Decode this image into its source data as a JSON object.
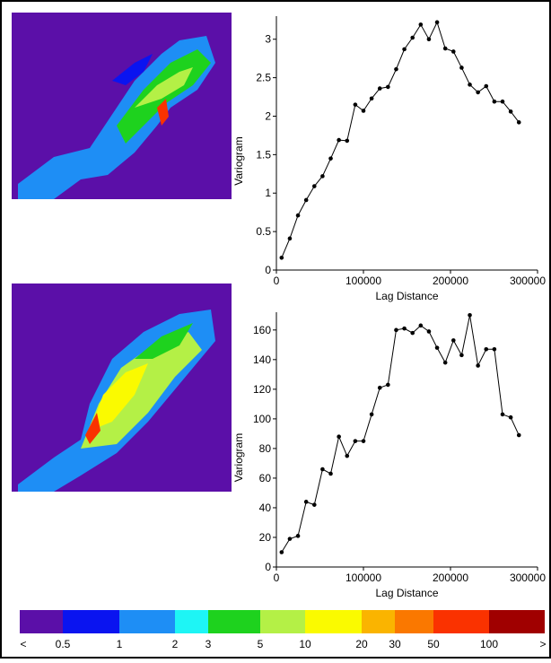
{
  "chart_data": [
    {
      "type": "line",
      "xlabel": "Lag Distance",
      "ylabel": "Variogram",
      "x": [
        6000,
        15400,
        24800,
        34200,
        43600,
        53000,
        62400,
        71800,
        81200,
        90600,
        100000,
        109400,
        118800,
        128200,
        137600,
        147000,
        156400,
        165800,
        175200,
        184600,
        194000,
        203400,
        212800,
        222200,
        231600,
        241000,
        250400,
        259800,
        269200,
        278600
      ],
      "series": [
        {
          "color": "#000000",
          "values": [
            0.16,
            0.41,
            0.71,
            0.91,
            1.09,
            1.22,
            1.45,
            1.69,
            1.68,
            2.15,
            2.07,
            2.23,
            2.36,
            2.38,
            2.61,
            2.87,
            3.02,
            3.19,
            3.0,
            3.22,
            2.88,
            2.84,
            2.63,
            2.41,
            2.31,
            2.39,
            2.19,
            2.19,
            2.06,
            1.92
          ]
        }
      ],
      "xlim": [
        0,
        300000
      ],
      "xticks": [
        0,
        100000,
        200000,
        300000
      ],
      "ylim": [
        0,
        3.3
      ],
      "yticks": [
        0,
        0.5,
        1,
        1.5,
        2,
        2.5,
        3
      ]
    },
    {
      "type": "line",
      "xlabel": "Lag Distance",
      "ylabel": "Variogram",
      "x": [
        6000,
        15400,
        24800,
        34200,
        43600,
        53000,
        62400,
        71800,
        81200,
        90600,
        100000,
        109400,
        118800,
        128200,
        137600,
        147000,
        156400,
        165800,
        175200,
        184600,
        194000,
        203400,
        212800,
        222200,
        231600,
        241000,
        250400,
        259800,
        269200,
        278600
      ],
      "series": [
        {
          "color": "#000000",
          "values": [
            10,
            19,
            21,
            44,
            42,
            66,
            63,
            88,
            75,
            85,
            85,
            103,
            121,
            123,
            160,
            161,
            158,
            163,
            159,
            148,
            138,
            153,
            143,
            170,
            136,
            147,
            147,
            103,
            101,
            89
          ]
        }
      ],
      "xlim": [
        0,
        300000
      ],
      "xticks": [
        0,
        100000,
        200000,
        300000
      ],
      "ylim": [
        0,
        172
      ],
      "yticks": [
        0,
        20,
        40,
        60,
        80,
        100,
        120,
        140,
        160
      ]
    }
  ],
  "colorbar": {
    "colors": [
      "#5b0fa8",
      "#0a14f0",
      "#1e8ef5",
      "#1ef5f5",
      "#1ed21e",
      "#b4f046",
      "#fafa00",
      "#fab400",
      "#fa7800",
      "#fa3200",
      "#a00000"
    ],
    "labels": [
      "<",
      "0.5",
      "1",
      "2",
      "3",
      "5",
      "10",
      "20",
      "30",
      "50",
      "100",
      ">"
    ]
  }
}
